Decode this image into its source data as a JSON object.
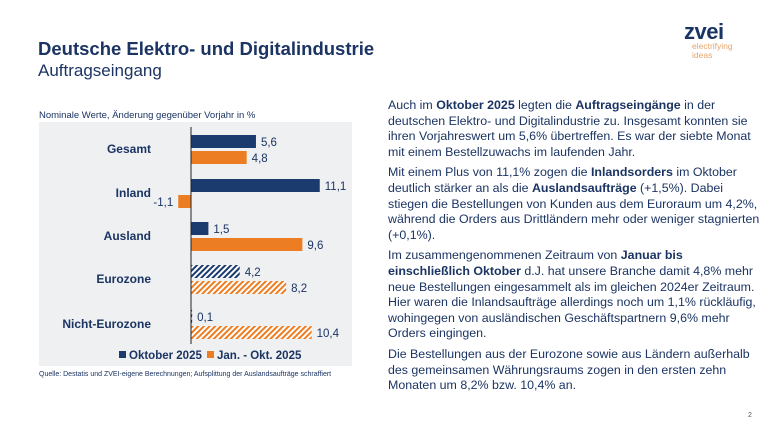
{
  "header": {
    "title": "Deutsche Elektro- und Digitalindustrie",
    "subtitle": "Auftragseingang"
  },
  "logo": {
    "name": "zvei",
    "tagline_1": "electrifying",
    "tagline_2": "ideas"
  },
  "chart_note": "Nominale Werte, Änderung gegenüber Vorjahr in %",
  "source": "Quelle: Destatis und ZVEI-eigene Berechnungen; Aufsplittung der Auslandsaufträge schraffiert",
  "page_number": "2",
  "colors": {
    "primary": "#1b3a6e",
    "accent": "#ed7d22",
    "chart_bg": "#eef0f1"
  },
  "chart_data": {
    "type": "bar",
    "orientation": "horizontal",
    "categories": [
      "Gesamt",
      "Inland",
      "Ausland",
      "Eurozone",
      "Nicht-Eurozone"
    ],
    "hatched_categories": [
      "Eurozone",
      "Nicht-Eurozone"
    ],
    "series": [
      {
        "name": "Oktober 2025",
        "color": "#1b3a6e",
        "values": [
          5.6,
          11.1,
          1.5,
          4.2,
          0.1
        ],
        "labels": [
          "5,6",
          "11,1",
          "1,5",
          "4,2",
          "0,1"
        ]
      },
      {
        "name": "Jan. - Okt. 2025",
        "color": "#ed7d22",
        "values": [
          4.8,
          -1.1,
          9.6,
          8.2,
          10.4
        ],
        "labels": [
          "4,8",
          "-1,1",
          "9,6",
          "8,2",
          "10,4"
        ]
      }
    ],
    "legend": "bottom"
  },
  "paragraphs": [
    [
      {
        "t": "Auch im "
      },
      {
        "t": "Oktober 2025",
        "b": true
      },
      {
        "t": " legten die "
      },
      {
        "t": "Auftragseingänge",
        "b": true
      },
      {
        "t": " in der deutschen Elektro- und Digitalindustrie zu. Insgesamt konnten sie ihren Vorjahreswert um 5,6% übertreffen. Es war der siebte Monat mit einem Bestellzuwachs im laufenden Jahr."
      }
    ],
    [
      {
        "t": "Mit einem Plus von 11,1% zogen die "
      },
      {
        "t": "Inlandsorders",
        "b": true
      },
      {
        "t": " im Oktober deutlich stärker an als die "
      },
      {
        "t": "Auslandsaufträge",
        "b": true
      },
      {
        "t": " (+1,5%). Dabei stiegen die Bestellungen von Kunden aus dem Euroraum um 4,2%, während die Orders aus Drittländern mehr oder weniger stagnierten (+0,1%)."
      }
    ],
    [
      {
        "t": "Im zusammengenommenen Zeitraum von "
      },
      {
        "t": "Januar bis einschließlich Oktober",
        "b": true
      },
      {
        "t": " d.J. hat unsere Branche damit 4,8% mehr neue Bestellungen eingesammelt als im gleichen 2024er Zeitraum. Hier waren die Inlandsaufträge allerdings noch um 1,1% rückläufig, wohingegen von ausländischen Geschäftspartnern 9,6% mehr Orders eingingen."
      }
    ],
    [
      {
        "t": "Die Bestellungen aus der Eurozone sowie aus Ländern außerhalb des gemeinsamen Währungsraums zogen in den ersten zehn Monaten um 8,2% bzw. 10,4% an."
      }
    ]
  ]
}
